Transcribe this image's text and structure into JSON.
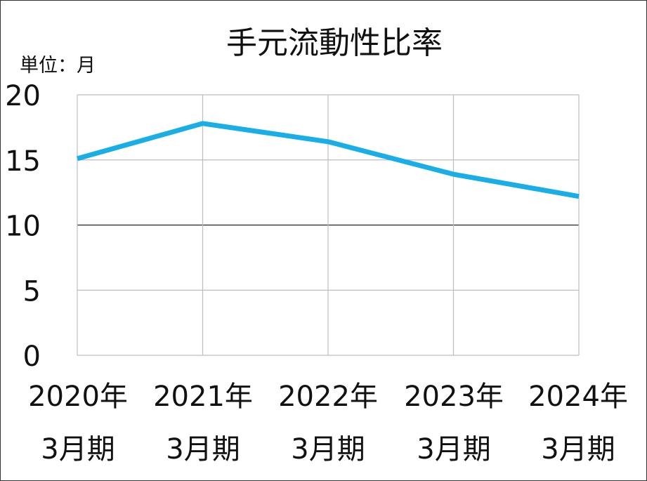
{
  "chart_data": {
    "type": "line",
    "title": "手元流動性比率",
    "unit_label": "単位：月",
    "categories": [
      {
        "line1": "2020年",
        "line2": "3月期"
      },
      {
        "line1": "2021年",
        "line2": "3月期"
      },
      {
        "line1": "2022年",
        "line2": "3月期"
      },
      {
        "line1": "2023年",
        "line2": "3月期"
      },
      {
        "line1": "2024年",
        "line2": "3月期"
      }
    ],
    "series": [
      {
        "values": [
          15.1,
          17.8,
          16.4,
          13.9,
          12.2
        ],
        "color": "#19aee8"
      }
    ],
    "ylim": [
      0,
      20
    ],
    "yticks": [
      0,
      5,
      10,
      15,
      20
    ],
    "grid": true,
    "legend": "none"
  }
}
